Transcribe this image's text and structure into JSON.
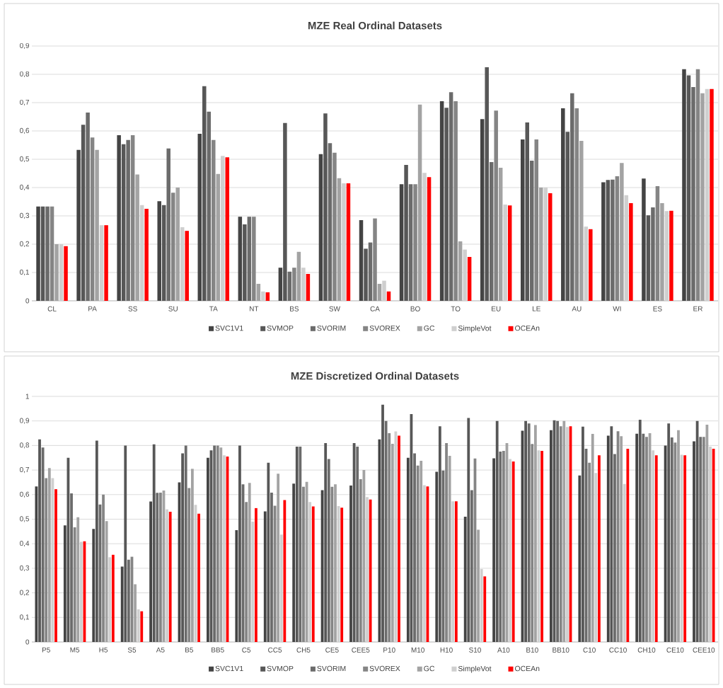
{
  "chart_data": [
    {
      "type": "bar",
      "title": "MZE Real Ordinal Datasets",
      "grid": "y",
      "legend": "bottom",
      "categories": [
        "CL",
        "PA",
        "SS",
        "SU",
        "TA",
        "NT",
        "BS",
        "SW",
        "CA",
        "BO",
        "TO",
        "EU",
        "LE",
        "AU",
        "WI",
        "ES",
        "ER"
      ],
      "ylim": [
        0,
        0.9
      ],
      "yticks": [
        0,
        {
          "value": 0.1,
          "label": "0,1"
        },
        {
          "value": 0.2,
          "label": "0,2"
        },
        {
          "value": 0.3,
          "label": "0,3"
        },
        {
          "value": 0.4,
          "label": "0,4"
        },
        {
          "value": 0.5,
          "label": "0,5"
        },
        {
          "value": 0.6,
          "label": "0,6"
        },
        {
          "value": 0.7,
          "label": "0,7"
        },
        {
          "value": 0.8,
          "label": "0,8"
        },
        {
          "value": 0.9,
          "label": "0,9"
        }
      ],
      "series": [
        {
          "name": "SVC1V1",
          "color": "#444444",
          "values": [
            0.333,
            0.533,
            0.585,
            0.352,
            0.59,
            0.297,
            0.117,
            0.518,
            0.285,
            0.412,
            0.705,
            0.642,
            0.57,
            0.68,
            0.419,
            0.432,
            0.818
          ]
        },
        {
          "name": "SVMOP",
          "color": "#575757",
          "values": [
            0.333,
            0.622,
            0.553,
            0.338,
            0.758,
            0.27,
            0.628,
            0.662,
            0.184,
            0.48,
            0.682,
            0.825,
            0.63,
            0.597,
            0.427,
            0.302,
            0.796
          ]
        },
        {
          "name": "SVORIM",
          "color": "#6b6b6b",
          "values": [
            0.333,
            0.665,
            0.568,
            0.538,
            0.668,
            0.297,
            0.103,
            0.557,
            0.206,
            0.412,
            0.737,
            0.49,
            0.495,
            0.733,
            0.428,
            0.33,
            0.755
          ]
        },
        {
          "name": "SVOREX",
          "color": "#858585",
          "values": [
            0.333,
            0.577,
            0.585,
            0.382,
            0.568,
            0.297,
            0.117,
            0.523,
            0.291,
            0.412,
            0.705,
            0.672,
            0.57,
            0.68,
            0.44,
            0.405,
            0.818
          ]
        },
        {
          "name": "GC",
          "color": "#a3a3a3",
          "values": [
            0.2,
            0.533,
            0.446,
            0.4,
            0.448,
            0.06,
            0.173,
            0.433,
            0.06,
            0.693,
            0.21,
            0.47,
            0.4,
            0.565,
            0.487,
            0.345,
            0.733
          ]
        },
        {
          "name": "SimpleVot",
          "color": "#cfcfcf",
          "values": [
            0.2,
            0.267,
            0.338,
            0.26,
            0.512,
            0.033,
            0.117,
            0.415,
            0.071,
            0.452,
            0.181,
            0.34,
            0.4,
            0.262,
            0.373,
            0.317,
            0.748
          ]
        },
        {
          "name": "OCEAn",
          "color": "#ff0000",
          "values": [
            0.193,
            0.267,
            0.325,
            0.247,
            0.507,
            0.03,
            0.095,
            0.415,
            0.033,
            0.437,
            0.155,
            0.337,
            0.38,
            0.253,
            0.345,
            0.318,
            0.748
          ]
        }
      ]
    },
    {
      "type": "bar",
      "title": "MZE Discretized Ordinal Datasets",
      "grid": "y",
      "legend": "bottom",
      "categories": [
        "P5",
        "M5",
        "H5",
        "S5",
        "A5",
        "B5",
        "BB5",
        "C5",
        "CC5",
        "CH5",
        "CE5",
        "CEE5",
        "P10",
        "M10",
        "H10",
        "S10",
        "A10",
        "B10",
        "BB10",
        "C10",
        "CC10",
        "CH10",
        "CE10",
        "CEE10"
      ],
      "ylim": [
        0,
        1
      ],
      "yticks": [
        0,
        {
          "value": 0.1,
          "label": "0,1"
        },
        {
          "value": 0.2,
          "label": "0,2"
        },
        {
          "value": 0.3,
          "label": "0,3"
        },
        {
          "value": 0.4,
          "label": "0,4"
        },
        {
          "value": 0.5,
          "label": "0,5"
        },
        {
          "value": 0.6,
          "label": "0,6"
        },
        {
          "value": 0.7,
          "label": "0,7"
        },
        {
          "value": 0.8,
          "label": "0,8"
        },
        {
          "value": 0.9,
          "label": "0,9"
        },
        1
      ],
      "series": [
        {
          "name": "SVC1V1",
          "color": "#444444",
          "values": [
            0.633,
            0.475,
            0.46,
            0.307,
            0.572,
            0.65,
            0.75,
            0.455,
            0.532,
            0.645,
            0.618,
            0.637,
            0.825,
            0.75,
            0.693,
            0.51,
            0.748,
            0.86,
            0.862,
            0.678,
            0.84,
            0.848,
            0.8,
            0.817
          ]
        },
        {
          "name": "SVMOP",
          "color": "#575757",
          "values": [
            0.825,
            0.75,
            0.82,
            0.8,
            0.805,
            0.768,
            0.78,
            0.8,
            0.73,
            0.795,
            0.81,
            0.81,
            0.966,
            0.928,
            0.878,
            0.912,
            0.9,
            0.9,
            0.903,
            0.877,
            0.878,
            0.905,
            0.89,
            0.9
          ]
        },
        {
          "name": "SVORIM",
          "color": "#6b6b6b",
          "values": [
            0.792,
            0.605,
            0.56,
            0.335,
            0.607,
            0.8,
            0.8,
            0.642,
            0.608,
            0.795,
            0.745,
            0.795,
            0.9,
            0.768,
            0.698,
            0.618,
            0.775,
            0.89,
            0.9,
            0.787,
            0.765,
            0.848,
            0.833,
            0.835
          ]
        },
        {
          "name": "SVOREX",
          "color": "#858585",
          "values": [
            0.667,
            0.467,
            0.6,
            0.347,
            0.608,
            0.627,
            0.8,
            0.57,
            0.555,
            0.632,
            0.632,
            0.663,
            0.85,
            0.718,
            0.81,
            0.747,
            0.778,
            0.806,
            0.878,
            0.73,
            0.858,
            0.835,
            0.812,
            0.835
          ]
        },
        {
          "name": "GC",
          "color": "#a3a3a3",
          "values": [
            0.708,
            0.508,
            0.492,
            0.235,
            0.617,
            0.705,
            0.792,
            0.648,
            0.685,
            0.652,
            0.642,
            0.7,
            0.807,
            0.738,
            0.758,
            0.457,
            0.81,
            0.883,
            0.9,
            0.847,
            0.838,
            0.85,
            0.862,
            0.885
          ]
        },
        {
          "name": "SimpleVot",
          "color": "#cfcfcf",
          "values": [
            0.667,
            0.408,
            0.345,
            0.133,
            0.54,
            0.558,
            0.76,
            0.49,
            0.437,
            0.57,
            0.553,
            0.59,
            0.857,
            0.638,
            0.573,
            0.297,
            0.745,
            0.78,
            0.875,
            0.688,
            0.643,
            0.78,
            0.762,
            0.795
          ]
        },
        {
          "name": "OCEAn",
          "color": "#ff0000",
          "values": [
            0.622,
            0.41,
            0.355,
            0.125,
            0.53,
            0.522,
            0.755,
            0.545,
            0.578,
            0.552,
            0.547,
            0.58,
            0.84,
            0.633,
            0.573,
            0.267,
            0.735,
            0.778,
            0.878,
            0.76,
            0.787,
            0.76,
            0.76,
            0.787
          ]
        }
      ]
    }
  ]
}
